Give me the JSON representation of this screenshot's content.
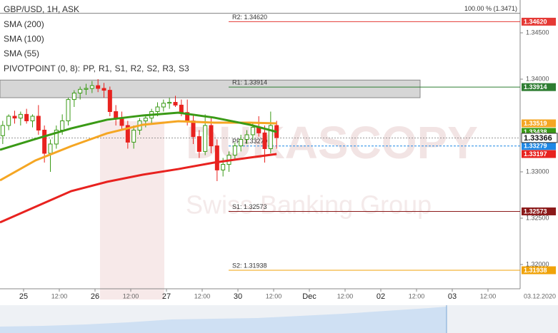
{
  "chart_data": {
    "type": "candlestick",
    "title": "GBP/USD, 1H, ASK",
    "watermark": [
      "DUKASCOPY",
      "Swiss Banking Group"
    ],
    "xlim": [
      -7.92,
      166.8
    ],
    "xticks": [
      {
        "value": 0,
        "label": "25"
      },
      {
        "value": 12,
        "label": "12:00"
      },
      {
        "value": 24,
        "label": "26"
      },
      {
        "value": 36,
        "label": "12:00"
      },
      {
        "value": 48,
        "label": "27"
      },
      {
        "value": 60,
        "label": "12:00"
      },
      {
        "value": 72,
        "label": "30"
      },
      {
        "value": 84,
        "label": "12:00"
      },
      {
        "value": 96,
        "label": "Dec"
      },
      {
        "value": 108,
        "label": "12:00"
      },
      {
        "value": 120,
        "label": "02"
      },
      {
        "value": 132,
        "label": "12:00"
      },
      {
        "value": 144,
        "label": "03"
      },
      {
        "value": 156,
        "label": "12:00"
      }
    ],
    "x_end_label": "03.12.2020",
    "ylim": [
      1.31738,
      1.34854
    ],
    "yticks": [
      {
        "value": 1.345,
        "label": "1.34500"
      },
      {
        "value": 1.34,
        "label": "1.34000"
      },
      {
        "value": 1.33,
        "label": "1.33000"
      },
      {
        "value": 1.325,
        "label": "1.32500"
      },
      {
        "value": 1.32,
        "label": "1.32000"
      }
    ],
    "candles": {
      "up_color": "#3a9a16",
      "down_color": "#e8221f",
      "x": [
        -7,
        -5,
        -3,
        -1,
        1,
        3,
        5,
        7,
        9,
        11,
        13,
        15,
        17,
        19,
        21,
        23,
        25,
        27,
        29,
        31,
        33,
        35,
        37,
        39,
        41,
        43,
        45,
        47,
        49,
        51,
        53,
        55,
        57,
        59,
        61,
        63,
        65,
        67,
        69,
        71,
        73,
        75,
        77,
        79,
        81,
        83,
        85
      ],
      "open": [
        1.3339,
        1.335,
        1.336,
        1.3358,
        1.3362,
        1.3355,
        1.336,
        1.3345,
        1.332,
        1.333,
        1.3345,
        1.3355,
        1.3378,
        1.3385,
        1.3389,
        1.339,
        1.3393,
        1.339,
        1.3388,
        1.3365,
        1.3358,
        1.335,
        1.3332,
        1.3345,
        1.3355,
        1.3358,
        1.3365,
        1.337,
        1.3374,
        1.3375,
        1.3372,
        1.3364,
        1.3355,
        1.3338,
        1.3322,
        1.335,
        1.3328,
        1.3302,
        1.3308,
        1.3318,
        1.3328,
        1.3335,
        1.334,
        1.3348,
        1.3342,
        1.3325,
        1.335
      ],
      "high": [
        1.3355,
        1.3362,
        1.3366,
        1.3365,
        1.3368,
        1.3362,
        1.3372,
        1.335,
        1.3335,
        1.335,
        1.3362,
        1.338,
        1.3388,
        1.3392,
        1.3395,
        1.3398,
        1.34,
        1.3396,
        1.3392,
        1.3372,
        1.3365,
        1.3355,
        1.335,
        1.3358,
        1.3362,
        1.3368,
        1.3375,
        1.3378,
        1.338,
        1.3382,
        1.3378,
        1.3378,
        1.3362,
        1.3345,
        1.3362,
        1.3358,
        1.3335,
        1.3315,
        1.3322,
        1.3332,
        1.334,
        1.3345,
        1.3352,
        1.336,
        1.335,
        1.3365,
        1.3355
      ],
      "low": [
        1.333,
        1.3345,
        1.3352,
        1.335,
        1.3352,
        1.3348,
        1.334,
        1.331,
        1.33,
        1.3325,
        1.334,
        1.335,
        1.337,
        1.3378,
        1.3383,
        1.3385,
        1.3386,
        1.338,
        1.336,
        1.335,
        1.3345,
        1.3325,
        1.3325,
        1.334,
        1.3348,
        1.3352,
        1.336,
        1.3365,
        1.3368,
        1.337,
        1.336,
        1.335,
        1.333,
        1.3315,
        1.3318,
        1.332,
        1.329,
        1.3295,
        1.33,
        1.3312,
        1.3322,
        1.333,
        1.3335,
        1.3338,
        1.331,
        1.332,
        1.3325
      ],
      "close": [
        1.335,
        1.336,
        1.3358,
        1.3362,
        1.3355,
        1.336,
        1.3345,
        1.332,
        1.333,
        1.3345,
        1.3355,
        1.3378,
        1.3385,
        1.3389,
        1.339,
        1.3393,
        1.339,
        1.3388,
        1.3365,
        1.3358,
        1.335,
        1.3332,
        1.3345,
        1.3355,
        1.3358,
        1.3365,
        1.337,
        1.3374,
        1.3375,
        1.3372,
        1.3364,
        1.3355,
        1.3338,
        1.3322,
        1.335,
        1.3328,
        1.3302,
        1.3308,
        1.3318,
        1.3328,
        1.3335,
        1.334,
        1.3348,
        1.3342,
        1.3325,
        1.335,
        1.3337
      ]
    },
    "series": [
      {
        "name": "SMA (200)",
        "color": "#e8221f",
        "x": [
          -7.92,
          4,
          16,
          28,
          40,
          52,
          64,
          76,
          85
        ],
        "values": [
          1.32454,
          1.32623,
          1.32792,
          1.32892,
          1.32969,
          1.3303,
          1.331,
          1.33154,
          1.33192
        ],
        "value_label": "1.33197"
      },
      {
        "name": "SMA (100)",
        "color": "#f5a623",
        "x": [
          -7.92,
          4,
          16,
          28,
          40,
          52,
          64,
          76,
          85
        ],
        "values": [
          1.32908,
          1.33123,
          1.33277,
          1.33415,
          1.33508,
          1.33546,
          1.33531,
          1.33531,
          1.33523
        ],
        "value_label": "1.33519"
      },
      {
        "name": "SMA (55)",
        "color": "#3a9a16",
        "x": [
          -7.92,
          4,
          16,
          28,
          40,
          52,
          64,
          76,
          85
        ],
        "values": [
          1.33238,
          1.33354,
          1.33469,
          1.33562,
          1.33608,
          1.33638,
          1.33585,
          1.33508,
          1.33431
        ],
        "value_label": "1.33438"
      }
    ],
    "pivot": {
      "name": "PIVOTPOINT (0, 8):",
      "legend_items": [
        {
          "label": "PP,",
          "color": "#1e88e5"
        },
        {
          "label": "R1,",
          "color": "#2e7d32"
        },
        {
          "label": "S1,",
          "color": "#c62828"
        },
        {
          "label": "R2,",
          "color": "#e53935"
        },
        {
          "label": "S2,",
          "color": "#f5a623"
        },
        {
          "label": "R3,",
          "color": "#e6b800"
        },
        {
          "label": "S3",
          "color": "#e6b800"
        }
      ],
      "levels": [
        {
          "label": "R2: 1.34620",
          "value": 1.3462,
          "value_label": "1.34620",
          "color": "#e53935"
        },
        {
          "label": "R1: 1.33914",
          "value": 1.33914,
          "value_label": "1.33914",
          "color": "#2e7d32"
        },
        {
          "label": "PP: 1.33279",
          "value": 1.33279,
          "value_label": "1.33279",
          "color": "#1e88e5"
        },
        {
          "label": "S1: 1.32573",
          "value": 1.32573,
          "value_label": "1.32573",
          "color": "#8b1a1a"
        },
        {
          "label": "S2: 1.31938",
          "value": 1.31938,
          "value_label": "1.31938",
          "color": "#f0a30a"
        }
      ]
    },
    "zone": [
      1.338,
      1.3399
    ],
    "current": {
      "value": 1.33366,
      "label": "1.33366"
    },
    "top_level": {
      "value": 1.3471,
      "label": "100.00 % (1.3471)"
    }
  }
}
